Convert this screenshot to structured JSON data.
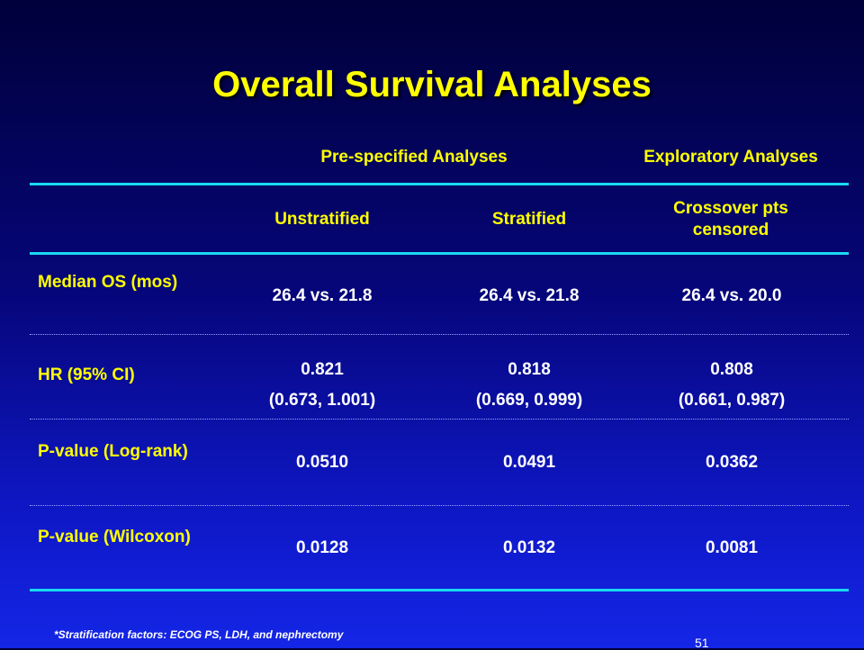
{
  "title": "Overall Survival Analyses",
  "column_groups": {
    "prespecified": "Pre-specified Analyses",
    "exploratory": "Exploratory Analyses"
  },
  "columns": [
    "Unstratified",
    "Stratified",
    "Crossover pts censored"
  ],
  "rows": [
    {
      "label": "Median OS (mos)",
      "values": [
        "26.4 vs. 21.8",
        "26.4 vs. 21.8",
        "26.4 vs. 20.0"
      ]
    },
    {
      "label": "HR (95% CI)",
      "values": [
        [
          "0.821",
          "(0.673, 1.001)"
        ],
        [
          "0.818",
          "(0.669, 0.999)"
        ],
        [
          "0.808",
          "(0.661, 0.987)"
        ]
      ]
    },
    {
      "label": "P-value (Log-rank)",
      "values": [
        "0.0510",
        "0.0491",
        "0.0362"
      ]
    },
    {
      "label": "P-value (Wilcoxon)",
      "values": [
        "0.0128",
        "0.0132",
        "0.0081"
      ]
    }
  ],
  "footnote": "*Stratification factors:  ECOG PS, LDH, and nephrectomy",
  "page_number": "51",
  "colors": {
    "title": "#ffff00",
    "header_text": "#ffff00",
    "body_text": "#ffffff",
    "rule": "#19d9f0"
  }
}
